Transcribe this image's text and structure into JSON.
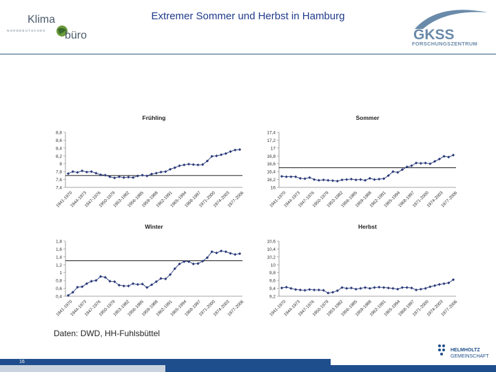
{
  "header": {
    "title": "Extremer Sommer und Herbst in Hamburg",
    "klima_logo": {
      "line1": "Klima",
      "line2": "büro",
      "tagline": "NORDDEUTSCHES"
    },
    "gkss_logo": {
      "name": "GKSS",
      "sub": "FORSCHUNGSZENTRUM"
    },
    "helmholtz_logo": {
      "line1": "HELMHOLTZ",
      "line2": "GEMEINSCHAFT"
    }
  },
  "footer": {
    "source": "Daten: DWD, HH-Fuhlsbüttel",
    "page_number": "16"
  },
  "colors": {
    "series": "#2a3a7a",
    "accent": "#1f4e8c",
    "title": "#1f3a8a"
  },
  "chart_data": [
    {
      "type": "line",
      "title": "Frühling",
      "ylim": [
        7.4,
        8.8
      ],
      "yticks": [
        "8,8",
        "8,6",
        "8,4",
        "8,2",
        "8",
        "7,8",
        "7,6",
        "7,4"
      ],
      "yticks_values": [
        8.8,
        8.6,
        8.4,
        8.2,
        8.0,
        7.8,
        7.6,
        7.4
      ],
      "reference_line": 7.7,
      "xtick_labels": [
        "1941-1970",
        "1944-1973",
        "1947-1976",
        "1950-1979",
        "1953-1982",
        "1956-1985",
        "1959-1988",
        "1962-1991",
        "1965-1994",
        "1968-1997",
        "1971-2000",
        "1974-2003",
        "1977-2006"
      ],
      "values": [
        7.75,
        7.8,
        7.78,
        7.82,
        7.79,
        7.8,
        7.76,
        7.72,
        7.71,
        7.67,
        7.64,
        7.67,
        7.65,
        7.66,
        7.65,
        7.69,
        7.71,
        7.69,
        7.74,
        7.76,
        7.79,
        7.8,
        7.86,
        7.9,
        7.95,
        7.97,
        7.99,
        7.98,
        7.97,
        7.98,
        8.07,
        8.19,
        8.2,
        8.23,
        8.26,
        8.31,
        8.35,
        8.36
      ]
    },
    {
      "type": "line",
      "title": "Sommer",
      "ylim": [
        16.0,
        17.4
      ],
      "yticks": [
        "17,4",
        "17,2",
        "17",
        "16,8",
        "16,6",
        "16,4",
        "16,2",
        "16"
      ],
      "yticks_values": [
        17.4,
        17.2,
        17.0,
        16.8,
        16.6,
        16.4,
        16.2,
        16.0
      ],
      "reference_line": 16.5,
      "xtick_labels": [
        "1941-1970",
        "1944-1973",
        "1947-1976",
        "1950-1979",
        "1953-1982",
        "1956-1985",
        "1959-1988",
        "1962-1991",
        "1965-1994",
        "1968-1997",
        "1971-2000",
        "1974-2003",
        "1977-2006"
      ],
      "values": [
        16.28,
        16.27,
        16.27,
        16.27,
        16.23,
        16.22,
        16.25,
        16.2,
        16.18,
        16.19,
        16.18,
        16.17,
        16.16,
        16.19,
        16.2,
        16.21,
        16.19,
        16.2,
        16.18,
        16.23,
        16.2,
        16.21,
        16.22,
        16.3,
        16.4,
        16.38,
        16.45,
        16.52,
        16.55,
        16.62,
        16.61,
        16.62,
        16.6,
        16.66,
        16.72,
        16.79,
        16.77,
        16.82
      ]
    },
    {
      "type": "line",
      "title": "Winter",
      "ylim": [
        0.4,
        1.8
      ],
      "yticks": [
        "1,8",
        "1,6",
        "1,4",
        "1,2",
        "1",
        "0,8",
        "0,6",
        "0,4"
      ],
      "yticks_values": [
        1.8,
        1.6,
        1.4,
        1.2,
        1.0,
        0.8,
        0.6,
        0.4
      ],
      "reference_line": 1.3,
      "xtick_labels": [
        "1941-1970",
        "1944-1973",
        "1947-1976",
        "1950-1979",
        "1953-1982",
        "1956-1985",
        "1959-1988",
        "1962-1991",
        "1965-1994",
        "1968-1997",
        "1971-2000",
        "1974-2003",
        "1977-2006"
      ],
      "values": [
        0.42,
        0.5,
        0.63,
        0.64,
        0.72,
        0.78,
        0.8,
        0.9,
        0.88,
        0.78,
        0.77,
        0.68,
        0.66,
        0.66,
        0.72,
        0.7,
        0.71,
        0.62,
        0.69,
        0.77,
        0.85,
        0.84,
        0.95,
        1.1,
        1.22,
        1.28,
        1.28,
        1.22,
        1.23,
        1.29,
        1.38,
        1.53,
        1.5,
        1.55,
        1.53,
        1.49,
        1.46,
        1.48
      ]
    },
    {
      "type": "line",
      "title": "Herbst",
      "ylim": [
        9.2,
        10.6
      ],
      "yticks": [
        "10,6",
        "10,4",
        "10,2",
        "10",
        "9,8",
        "9,6",
        "9,4",
        "9,2"
      ],
      "yticks_values": [
        10.6,
        10.4,
        10.2,
        10.0,
        9.8,
        9.6,
        9.4,
        9.2
      ],
      "reference_line": null,
      "xtick_labels": [
        "1941-1970",
        "1944-1973",
        "1947-1976",
        "1950-1979",
        "1953-1982",
        "1956-1985",
        "1959-1988",
        "1962-1991",
        "1965-1994",
        "1968-1997",
        "1971-2000",
        "1974-2003",
        "1977-2006"
      ],
      "values": [
        9.41,
        9.43,
        9.4,
        9.37,
        9.36,
        9.35,
        9.37,
        9.36,
        9.36,
        9.35,
        9.28,
        9.3,
        9.34,
        9.42,
        9.4,
        9.41,
        9.38,
        9.4,
        9.42,
        9.4,
        9.42,
        9.43,
        9.42,
        9.41,
        9.4,
        9.38,
        9.42,
        9.42,
        9.41,
        9.36,
        9.38,
        9.4,
        9.44,
        9.47,
        9.5,
        9.52,
        9.54,
        9.62
      ]
    }
  ]
}
